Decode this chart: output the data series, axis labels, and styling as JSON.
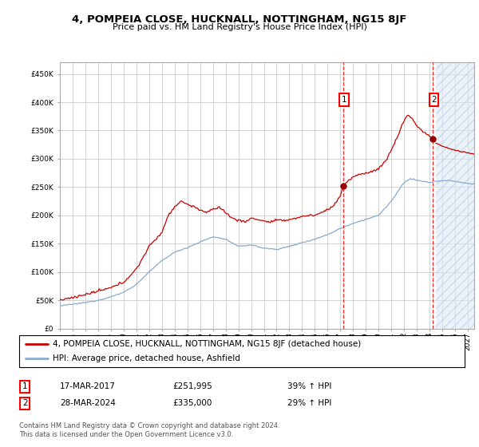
{
  "title": "4, POMPEIA CLOSE, HUCKNALL, NOTTINGHAM, NG15 8JF",
  "subtitle": "Price paid vs. HM Land Registry's House Price Index (HPI)",
  "ylim": [
    0,
    470000
  ],
  "xlim_start": 1995.0,
  "xlim_end": 2027.5,
  "sale1": {
    "date": 2017.21,
    "price": 251995,
    "label": "1"
  },
  "sale2": {
    "date": 2024.24,
    "price": 335000,
    "label": "2"
  },
  "annotation1": {
    "table": "17-MAR-2017",
    "price_str": "£251,995",
    "pct": "39% ↑ HPI"
  },
  "annotation2": {
    "table": "28-MAR-2024",
    "price_str": "£335,000",
    "pct": "29% ↑ HPI"
  },
  "legend_line1": "4, POMPEIA CLOSE, HUCKNALL, NOTTINGHAM, NG15 8JF (detached house)",
  "legend_line2": "HPI: Average price, detached house, Ashfield",
  "footer": "Contains HM Land Registry data © Crown copyright and database right 2024.\nThis data is licensed under the Open Government Licence v3.0.",
  "line_color_red": "#cc0000",
  "line_color_blue": "#88aacc",
  "hatch_color": "#ccdaee",
  "future_start": 2024.5,
  "grid_color": "#cccccc",
  "bg_color": "#ffffff"
}
